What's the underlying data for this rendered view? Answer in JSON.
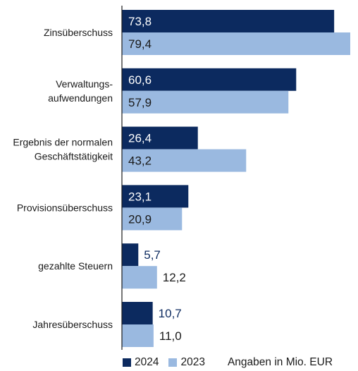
{
  "chart_data": {
    "type": "bar",
    "orientation": "horizontal",
    "categories": [
      [
        "Zinsüberschuss"
      ],
      [
        "Verwaltungs-",
        "aufwendungen"
      ],
      [
        "Ergebnis der normalen",
        "Geschäftstätigkeit"
      ],
      [
        "Provisionsüberschuss"
      ],
      [
        "gezahlte Steuern"
      ],
      [
        "Jahresüberschuss"
      ]
    ],
    "series": [
      {
        "name": "2024",
        "color": "#0c2a5f",
        "values": [
          73.8,
          60.6,
          26.4,
          23.1,
          5.7,
          10.7
        ],
        "labels": [
          "73,8",
          "60,6",
          "26,4",
          "23,1",
          "5,7",
          "10,7"
        ]
      },
      {
        "name": "2023",
        "color": "#9ab9e0",
        "values": [
          79.4,
          57.9,
          43.2,
          20.9,
          12.2,
          11.0
        ],
        "labels": [
          "79,4",
          "57,9",
          "43,2",
          "20,9",
          "12,2",
          "11,0"
        ]
      }
    ],
    "xlim": [
      0,
      79.4
    ],
    "grid": false,
    "legend_position": "bottom",
    "unit_note": "Angaben in Mio. EUR"
  }
}
